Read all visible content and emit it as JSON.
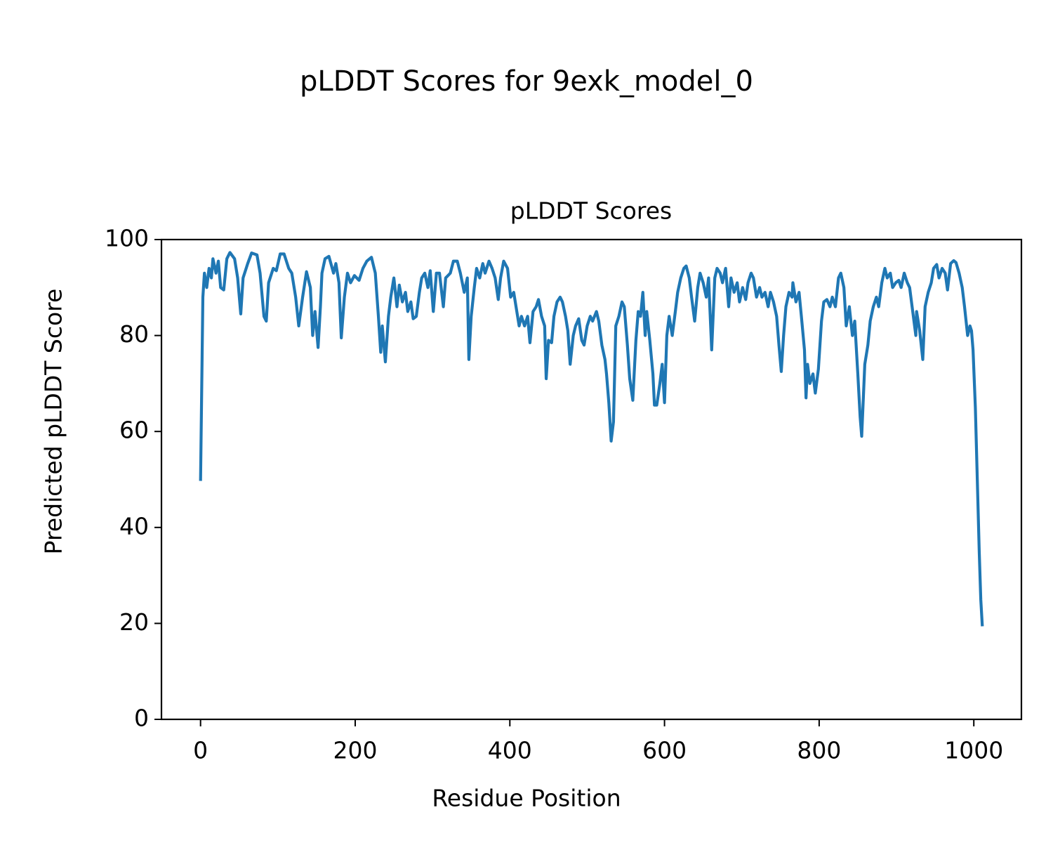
{
  "chart_data": {
    "type": "line",
    "title": "pLDDT Scores for 9exk_model_0",
    "subtitle": "pLDDT Scores",
    "xlabel": "Residue Position",
    "ylabel": "Predicted pLDDT Score",
    "xlim": [
      -50.55,
      1061.55
    ],
    "ylim": [
      0,
      100
    ],
    "xticks": [
      0,
      200,
      400,
      600,
      800,
      1000
    ],
    "yticks": [
      0,
      20,
      40,
      60,
      80,
      100
    ],
    "grid": false,
    "series": [
      {
        "color": "#1f77b4",
        "x": [
          0,
          3,
          5,
          8,
          11,
          14,
          16,
          20,
          23,
          26,
          30,
          34,
          38,
          44,
          48,
          52,
          55,
          61,
          66,
          73,
          77,
          82,
          85,
          88,
          94,
          98,
          103,
          108,
          114,
          118,
          123,
          127,
          132,
          137,
          142,
          145,
          148,
          152,
          155,
          157,
          161,
          166,
          172,
          175,
          179,
          182,
          186,
          190,
          194,
          199,
          205,
          210,
          215,
          221,
          226,
          230,
          233,
          235,
          239,
          243,
          246,
          250,
          254,
          257,
          261,
          265,
          268,
          272,
          275,
          279,
          283,
          286,
          290,
          294,
          297,
          301,
          305,
          309,
          314,
          317,
          323,
          327,
          332,
          336,
          341,
          345,
          347,
          350,
          354,
          357,
          361,
          365,
          368,
          373,
          377,
          381,
          385,
          388,
          392,
          397,
          401,
          405,
          408,
          412,
          415,
          419,
          423,
          426,
          430,
          434,
          437,
          441,
          445,
          447,
          450,
          454,
          457,
          461,
          465,
          468,
          472,
          475,
          478,
          482,
          485,
          489,
          493,
          496,
          500,
          504,
          507,
          512,
          515,
          519,
          523,
          525,
          528,
          531,
          534,
          537,
          541,
          545,
          548,
          552,
          555,
          559,
          563,
          566,
          569,
          572,
          575,
          577,
          581,
          585,
          587,
          590,
          594,
          597,
          600,
          603,
          606,
          610,
          614,
          617,
          621,
          625,
          628,
          632,
          635,
          639,
          643,
          646,
          650,
          654,
          657,
          661,
          665,
          668,
          672,
          675,
          679,
          683,
          686,
          690,
          694,
          697,
          701,
          705,
          708,
          712,
          715,
          719,
          723,
          726,
          730,
          734,
          737,
          741,
          745,
          748,
          751,
          754,
          757,
          761,
          765,
          766,
          770,
          774,
          777,
          781,
          783,
          785,
          788,
          792,
          795,
          799,
          803,
          806,
          810,
          814,
          817,
          821,
          825,
          828,
          832,
          835,
          839,
          843,
          846,
          850,
          853,
          855,
          859,
          863,
          866,
          870,
          874,
          877,
          881,
          885,
          888,
          892,
          895,
          899,
          903,
          906,
          910,
          914,
          917,
          921,
          925,
          926,
          930,
          934,
          937,
          941,
          945,
          948,
          952,
          955,
          959,
          963,
          966,
          970,
          974,
          977,
          981,
          985,
          988,
          992,
          995,
          997,
          999,
          1002,
          1005,
          1007,
          1009,
          1011
        ],
        "values": [
          49.7,
          88,
          93,
          90,
          94,
          92,
          96,
          93,
          95.5,
          90,
          89.5,
          96,
          97.3,
          96,
          92,
          84.5,
          92,
          95,
          97.2,
          96.8,
          93,
          84,
          83,
          91,
          94,
          93.5,
          97,
          97,
          94,
          93,
          88,
          82,
          88,
          93.3,
          90,
          80,
          85,
          77.5,
          86,
          93,
          96,
          96.5,
          93,
          95,
          91,
          79.5,
          88,
          93,
          91,
          92.5,
          91.5,
          94,
          95.5,
          96.3,
          93,
          84,
          76.5,
          82,
          74.5,
          84,
          88,
          92,
          86,
          90.5,
          87,
          89,
          85,
          87,
          83.5,
          84,
          89,
          92,
          93,
          90,
          93.5,
          85,
          93,
          93,
          86,
          92,
          93,
          95.5,
          95.5,
          93,
          89,
          92,
          75,
          84,
          90,
          94,
          92,
          95,
          93,
          95.5,
          94,
          92,
          87.5,
          92,
          95.5,
          94,
          88,
          89,
          86,
          82,
          84,
          82,
          84,
          78.5,
          85,
          86,
          87.5,
          84,
          82,
          71,
          79,
          78.5,
          84,
          87,
          88,
          87,
          84,
          81,
          74,
          80,
          82,
          83.5,
          79,
          78,
          82,
          84,
          83,
          85,
          83,
          78,
          75,
          72,
          66,
          58,
          62,
          82,
          84,
          87,
          86,
          78,
          71,
          66.5,
          79,
          85,
          84,
          89,
          80,
          85,
          79,
          72,
          65.5,
          65.5,
          70,
          74,
          66,
          80,
          84,
          80,
          85,
          89,
          92,
          94,
          94.5,
          92,
          88,
          83,
          90,
          93,
          91,
          88,
          92,
          77,
          92,
          94,
          93,
          91,
          94,
          86,
          92,
          89,
          91,
          87,
          90,
          87.5,
          91,
          93,
          92,
          88,
          90,
          88,
          89,
          86,
          89,
          87,
          84,
          78,
          72.5,
          80,
          86,
          89,
          88,
          91,
          87,
          89,
          84,
          77,
          67,
          74,
          70,
          72,
          68,
          73,
          83,
          87,
          87.5,
          86,
          88,
          86,
          92,
          93,
          90,
          82,
          86,
          80,
          83,
          72,
          63,
          59,
          74,
          78,
          83,
          86,
          88,
          86,
          91,
          94,
          92,
          93,
          90,
          91,
          91.5,
          90,
          93,
          91,
          90,
          85,
          80,
          85,
          81,
          75,
          86,
          89,
          91,
          94,
          94.8,
          92,
          94,
          93,
          89.5,
          95,
          95.6,
          95.2,
          93,
          90,
          86,
          80,
          82,
          81,
          77,
          65,
          47,
          35,
          25,
          19.4
        ]
      }
    ]
  }
}
